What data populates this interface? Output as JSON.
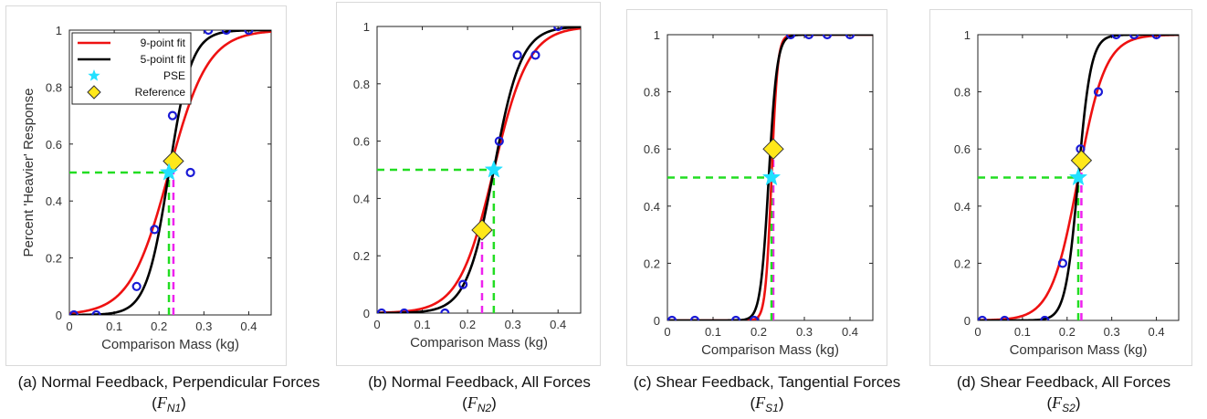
{
  "figure": {
    "ylabel": "Percent 'Heavier' Response",
    "xlabel": "Comparison Mass (kg)",
    "legend": {
      "nine_point": "9-point fit",
      "five_point": "5-point fit",
      "pse": "PSE",
      "reference": "Reference"
    },
    "colors": {
      "nine_point_fit": "#ee1111",
      "five_point_fit": "#000000",
      "pse_marker": "#22e0ff",
      "reference_marker": "#ffe81a",
      "data_marker": "#1a1ad6",
      "pse_guide": "#22dd22",
      "reference_guide": "#ee22ee"
    }
  },
  "chart_data": [
    {
      "type": "line",
      "panel": "a",
      "caption": "(a) Normal Feedback, Perpendicular Forces",
      "caption_symbol": "F",
      "caption_sub": "N1",
      "xlim": [
        0,
        0.45
      ],
      "ylim": [
        0,
        1
      ],
      "xticks": [
        "0",
        "0.1",
        "0.2",
        "0.3",
        "0.4"
      ],
      "yticks": [
        "0",
        "0.2",
        "0.4",
        "0.6",
        "0.8",
        "1"
      ],
      "data_points": {
        "x": [
          0.01,
          0.06,
          0.15,
          0.19,
          0.23,
          0.27,
          0.31,
          0.35,
          0.4
        ],
        "y": [
          0,
          0,
          0.1,
          0.3,
          0.7,
          0.5,
          1,
          1,
          1
        ]
      },
      "fit_9pt": {
        "mu": 0.222,
        "slope": 23
      },
      "fit_5pt": {
        "mu": 0.222,
        "slope": 40
      },
      "pse": {
        "x": 0.222,
        "y": 0.5
      },
      "reference": {
        "x": 0.232,
        "y": 0.54
      },
      "legend_placement": "top-left"
    },
    {
      "type": "line",
      "panel": "b",
      "caption": "(b) Normal Feedback, All Forces",
      "caption_symbol": "F",
      "caption_sub": "N2",
      "xlim": [
        0,
        0.45
      ],
      "ylim": [
        0,
        1
      ],
      "xticks": [
        "0",
        "0.1",
        "0.2",
        "0.3",
        "0.4"
      ],
      "yticks": [
        "0",
        "0.2",
        "0.4",
        "0.6",
        "0.8",
        "1"
      ],
      "data_points": {
        "x": [
          0.01,
          0.06,
          0.15,
          0.19,
          0.23,
          0.27,
          0.31,
          0.35,
          0.4
        ],
        "y": [
          0,
          0,
          0,
          0.1,
          0.3,
          0.6,
          0.9,
          0.9,
          1
        ]
      },
      "fit_9pt": {
        "mu": 0.258,
        "slope": 26
      },
      "fit_5pt": {
        "mu": 0.258,
        "slope": 33
      },
      "pse": {
        "x": 0.258,
        "y": 0.5
      },
      "reference": {
        "x": 0.232,
        "y": 0.29
      }
    },
    {
      "type": "line",
      "panel": "c",
      "caption": "(c) Shear Feedback, Tangential Forces",
      "caption_symbol": "F",
      "caption_sub": "S1",
      "xlim": [
        0,
        0.45
      ],
      "ylim": [
        0,
        1
      ],
      "xticks": [
        "0",
        "0.1",
        "0.2",
        "0.3",
        "0.4"
      ],
      "yticks": [
        "0",
        "0.2",
        "0.4",
        "0.6",
        "0.8",
        "1"
      ],
      "data_points": {
        "x": [
          0.01,
          0.06,
          0.15,
          0.19,
          0.27,
          0.31,
          0.35,
          0.4
        ],
        "y": [
          0,
          0,
          0,
          0,
          1,
          1,
          1,
          1
        ]
      },
      "fit_9pt": {
        "mu": 0.228,
        "slope": 150
      },
      "fit_5pt": {
        "mu": 0.222,
        "slope": 110
      },
      "pse": {
        "x": 0.228,
        "y": 0.5
      },
      "reference": {
        "x": 0.232,
        "y": 0.6
      }
    },
    {
      "type": "line",
      "panel": "d",
      "caption": "(d) Shear Feedback, All Forces",
      "caption_symbol": "F",
      "caption_sub": "S2",
      "xlim": [
        0,
        0.45
      ],
      "ylim": [
        0,
        1
      ],
      "xticks": [
        "0",
        "0.1",
        "0.2",
        "0.3",
        "0.4"
      ],
      "yticks": [
        "0",
        "0.2",
        "0.4",
        "0.6",
        "0.8",
        "1"
      ],
      "data_points": {
        "x": [
          0.01,
          0.06,
          0.15,
          0.19,
          0.23,
          0.27,
          0.31,
          0.35,
          0.4
        ],
        "y": [
          0,
          0,
          0,
          0.2,
          0.6,
          0.8,
          1,
          1,
          1
        ]
      },
      "fit_9pt": {
        "mu": 0.225,
        "slope": 33
      },
      "fit_5pt": {
        "mu": 0.225,
        "slope": 70
      },
      "pse": {
        "x": 0.225,
        "y": 0.5
      },
      "reference": {
        "x": 0.232,
        "y": 0.56
      }
    }
  ]
}
